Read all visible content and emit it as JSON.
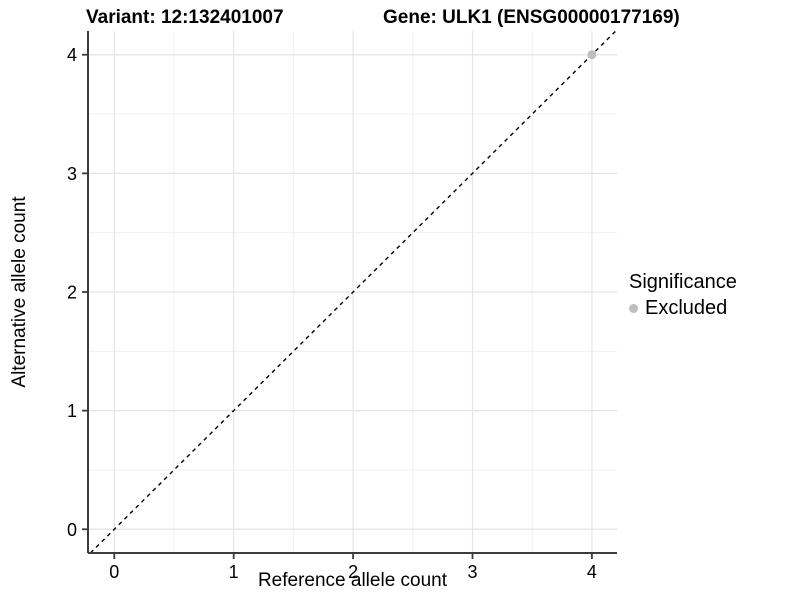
{
  "titles": {
    "variant": "Variant: 12:132401007",
    "gene": "Gene: ULK1 (ENSG00000177169)"
  },
  "legend": {
    "title": "Significance",
    "items": [
      {
        "label": "Excluded",
        "color": "#bebebe"
      }
    ]
  },
  "chart_data": {
    "type": "scatter",
    "title_left": "Variant: 12:132401007",
    "title_right": "Gene: ULK1 (ENSG00000177169)",
    "xlabel": "Reference allele count",
    "ylabel": "Alternative allele count",
    "xlim": [
      -0.22,
      4.21
    ],
    "ylim": [
      -0.2,
      4.2
    ],
    "x_ticks": [
      0,
      1,
      2,
      3,
      4
    ],
    "y_ticks": [
      0,
      1,
      2,
      3,
      4
    ],
    "minor_grid_step": 0.5,
    "grid": true,
    "legend_position": "right",
    "legend_title": "Significance",
    "series": [
      {
        "name": "Excluded",
        "color": "#bebebe",
        "marker": "circle",
        "points": [
          [
            4,
            4
          ]
        ]
      }
    ],
    "reference_line": {
      "equation": "y = x",
      "slope": 1,
      "intercept": 0,
      "style": "dashed",
      "color": "#000000"
    }
  },
  "style": {
    "axis_line_color": "#3c3c3c",
    "tick_color": "#3c3c3c",
    "grid_major_color": "#e5e5e5",
    "grid_minor_color": "#f2f2f2",
    "point_color": "#bebebe",
    "background": "#ffffff"
  }
}
